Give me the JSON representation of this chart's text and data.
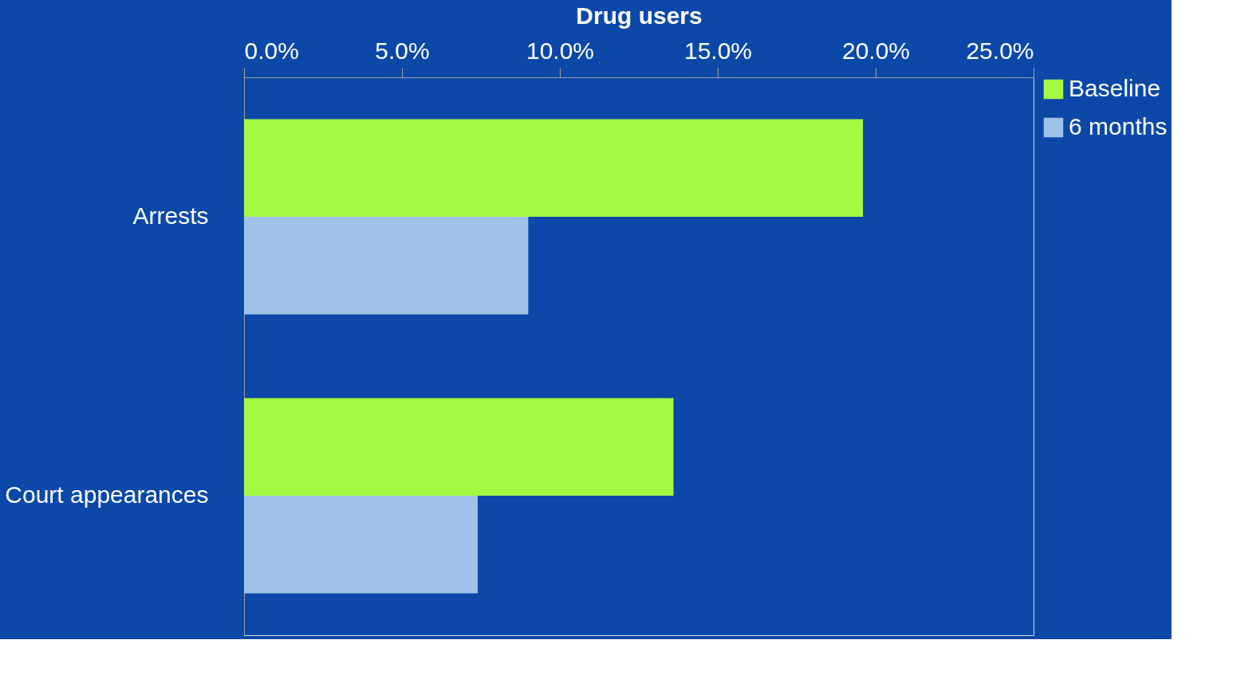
{
  "chart_data": {
    "type": "bar",
    "orientation": "horizontal",
    "xlabel": "Drug users",
    "categories": [
      "Arrests",
      "Court appearances"
    ],
    "series": [
      {
        "name": "Baseline",
        "color": "#a6f943",
        "values": [
          19.6,
          13.6
        ]
      },
      {
        "name": "6 months",
        "color": "#9fc2e9",
        "values": [
          9.0,
          7.4
        ]
      }
    ],
    "xlim": [
      0,
      25
    ],
    "xticks": [
      {
        "value": 0,
        "label": "0.0%"
      },
      {
        "value": 5,
        "label": "5.0%"
      },
      {
        "value": 10,
        "label": "10.0%"
      },
      {
        "value": 15,
        "label": "15.0%"
      },
      {
        "value": 20,
        "label": "20.0%"
      },
      {
        "value": 25,
        "label": "25.0%"
      }
    ],
    "grid": false,
    "legend": "right"
  }
}
